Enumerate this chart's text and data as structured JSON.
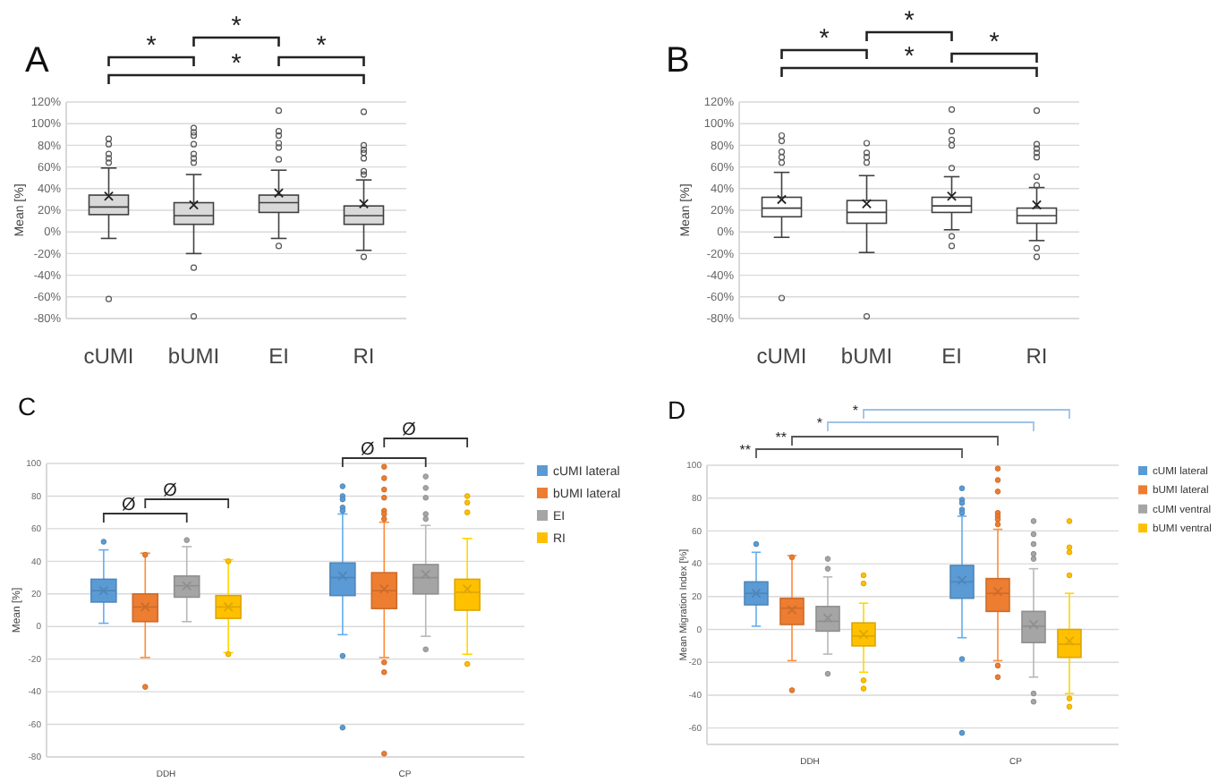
{
  "chart_data": [
    {
      "type": "box",
      "title": "A",
      "ylabel": "Mean [%]",
      "categories": [
        "cUMI",
        "bUMI",
        "EI",
        "RI"
      ],
      "ylim": [
        -80,
        120
      ],
      "yticks": [
        {
          "value": -80,
          "label": "-80%"
        },
        {
          "value": -60,
          "label": "-60%"
        },
        {
          "value": -40,
          "label": "-40%"
        },
        {
          "value": -20,
          "label": "-20%"
        },
        {
          "value": 0,
          "label": "0%"
        },
        {
          "value": 20,
          "label": "20%"
        },
        {
          "value": 40,
          "label": "40%"
        },
        {
          "value": 60,
          "label": "60%"
        },
        {
          "value": 80,
          "label": "80%"
        },
        {
          "value": 100,
          "label": "100%"
        },
        {
          "value": 120,
          "label": "120%"
        }
      ],
      "grid": "y",
      "annotations": [
        "*",
        "*",
        "*",
        "*"
      ],
      "series": [
        {
          "color": "#d9d9d9",
          "boxes": [
            {
              "low": -6,
              "q1": 16,
              "median": 23,
              "q3": 34,
              "high": 59,
              "mean": 33,
              "outliers": [
                86,
                81,
                72,
                68,
                64,
                -62
              ]
            },
            {
              "low": -20,
              "q1": 7,
              "median": 15,
              "q3": 27,
              "high": 53,
              "mean": 25,
              "outliers": [
                96,
                92,
                89,
                81,
                72,
                68,
                64,
                -33,
                -78
              ]
            },
            {
              "low": -6,
              "q1": 18,
              "median": 27,
              "q3": 34,
              "high": 57,
              "mean": 36,
              "outliers": [
                112,
                93,
                89,
                82,
                78,
                67,
                -13
              ]
            },
            {
              "low": -17,
              "q1": 7,
              "median": 15,
              "q3": 24,
              "high": 48,
              "mean": 26,
              "outliers": [
                111,
                80,
                76,
                73,
                68,
                56,
                53,
                -23
              ]
            }
          ]
        }
      ]
    },
    {
      "type": "box",
      "title": "B",
      "ylabel": "Mean [%]",
      "categories": [
        "cUMI",
        "bUMI",
        "EI",
        "RI"
      ],
      "ylim": [
        -80,
        120
      ],
      "yticks": [
        {
          "value": -80,
          "label": "-80%"
        },
        {
          "value": -60,
          "label": "-60%"
        },
        {
          "value": -40,
          "label": "-40%"
        },
        {
          "value": -20,
          "label": "-20%"
        },
        {
          "value": 0,
          "label": "0%"
        },
        {
          "value": 20,
          "label": "20%"
        },
        {
          "value": 40,
          "label": "40%"
        },
        {
          "value": 60,
          "label": "60%"
        },
        {
          "value": 80,
          "label": "80%"
        },
        {
          "value": 100,
          "label": "100%"
        },
        {
          "value": 120,
          "label": "120%"
        }
      ],
      "grid": "y",
      "annotations": [
        "*",
        "*",
        "*",
        "*"
      ],
      "series": [
        {
          "color": "#ffffff",
          "boxes": [
            {
              "low": -5,
              "q1": 14,
              "median": 22,
              "q3": 32,
              "high": 55,
              "mean": 30,
              "outliers": [
                89,
                84,
                74,
                69,
                64,
                -61
              ]
            },
            {
              "low": -19,
              "q1": 8,
              "median": 18,
              "q3": 29,
              "high": 52,
              "mean": 26,
              "outliers": [
                82,
                73,
                69,
                64,
                -78
              ]
            },
            {
              "low": 2,
              "q1": 18,
              "median": 24,
              "q3": 32,
              "high": 51,
              "mean": 33,
              "outliers": [
                113,
                93,
                85,
                80,
                59,
                -4,
                -13
              ]
            },
            {
              "low": -8,
              "q1": 8,
              "median": 15,
              "q3": 22,
              "high": 41,
              "mean": 25,
              "outliers": [
                112,
                81,
                77,
                73,
                69,
                51,
                43,
                -15,
                -23
              ]
            }
          ]
        }
      ]
    },
    {
      "type": "box",
      "title": "C",
      "ylabel": "Mean [%]",
      "categories": [
        "DDH",
        "CP"
      ],
      "ylim": [
        -80,
        100
      ],
      "yticks": [
        -80,
        -60,
        -40,
        -20,
        0,
        20,
        40,
        60,
        80,
        100
      ],
      "grid": "y",
      "legend": "right",
      "annotations": [
        "Ø",
        "Ø",
        "Ø",
        "Ø"
      ],
      "series": [
        {
          "name": "cUMI lateral",
          "color": "#5b9bd5",
          "boxes": [
            {
              "low": 2,
              "q1": 15,
              "median": 22,
              "q3": 29,
              "high": 47,
              "mean": 22,
              "outliers": [
                52
              ]
            },
            {
              "low": -5,
              "q1": 19,
              "median": 30,
              "q3": 39,
              "high": 69,
              "mean": 31,
              "outliers": [
                86,
                80,
                78,
                73,
                71,
                -18,
                -62
              ]
            }
          ]
        },
        {
          "name": "bUMI lateral",
          "color": "#ed7d31",
          "boxes": [
            {
              "low": -19,
              "q1": 3,
              "median": 12,
              "q3": 20,
              "high": 45,
              "mean": 12,
              "outliers": [
                44,
                -37
              ]
            },
            {
              "low": -19,
              "q1": 11,
              "median": 22,
              "q3": 33,
              "high": 64,
              "mean": 23,
              "outliers": [
                98,
                91,
                84,
                79,
                71,
                69,
                66,
                -22,
                -28,
                -78
              ]
            }
          ]
        },
        {
          "name": "EI",
          "color": "#a5a5a5",
          "boxes": [
            {
              "low": 3,
              "q1": 18,
              "median": 25,
              "q3": 31,
              "high": 49,
              "mean": 25,
              "outliers": [
                53
              ]
            },
            {
              "low": -6,
              "q1": 20,
              "median": 30,
              "q3": 38,
              "high": 62,
              "mean": 32,
              "outliers": [
                92,
                85,
                79,
                69,
                66,
                -14
              ]
            }
          ]
        },
        {
          "name": "RI",
          "color": "#ffc000",
          "boxes": [
            {
              "low": -16,
              "q1": 5,
              "median": 12,
              "q3": 19,
              "high": 41,
              "mean": 12,
              "outliers": [
                40,
                -17
              ]
            },
            {
              "low": -17,
              "q1": 10,
              "median": 21,
              "q3": 29,
              "high": 54,
              "mean": 23,
              "outliers": [
                80,
                76,
                70,
                -23
              ]
            }
          ]
        }
      ]
    },
    {
      "type": "box",
      "title": "D",
      "ylabel": "Mean Migration Index [%]",
      "categories": [
        "DDH",
        "CP"
      ],
      "ylim": [
        -70,
        100
      ],
      "yticks": [
        -60,
        -40,
        -20,
        0,
        20,
        40,
        60,
        80,
        100
      ],
      "grid": "y",
      "legend": "right",
      "annotations": [
        "**",
        "**",
        "*",
        "*"
      ],
      "series": [
        {
          "name": "cUMI lateral",
          "color": "#5b9bd5",
          "boxes": [
            {
              "low": 2,
              "q1": 15,
              "median": 22,
              "q3": 29,
              "high": 47,
              "mean": 22,
              "outliers": [
                52
              ]
            },
            {
              "low": -5,
              "q1": 19,
              "median": 29,
              "q3": 39,
              "high": 69,
              "mean": 30,
              "outliers": [
                86,
                79,
                77,
                73,
                71,
                -18,
                -63
              ]
            }
          ]
        },
        {
          "name": "bUMI lateral",
          "color": "#ed7d31",
          "boxes": [
            {
              "low": -19,
              "q1": 3,
              "median": 13,
              "q3": 19,
              "high": 45,
              "mean": 12,
              "outliers": [
                44,
                -37
              ]
            },
            {
              "low": -19,
              "q1": 11,
              "median": 22,
              "q3": 31,
              "high": 61,
              "mean": 23,
              "outliers": [
                98,
                91,
                84,
                71,
                69,
                67,
                64,
                -22,
                -29
              ]
            }
          ]
        },
        {
          "name": "cUMI ventral",
          "color": "#a5a5a5",
          "boxes": [
            {
              "low": -15,
              "q1": -1,
              "median": 5,
              "q3": 14,
              "high": 32,
              "mean": 7,
              "outliers": [
                43,
                37,
                -27
              ]
            },
            {
              "low": -29,
              "q1": -8,
              "median": 2,
              "q3": 11,
              "high": 37,
              "mean": 3,
              "outliers": [
                66,
                58,
                52,
                46,
                43,
                -39,
                -44
              ]
            }
          ]
        },
        {
          "name": "bUMI ventral",
          "color": "#ffc000",
          "boxes": [
            {
              "low": -26,
              "q1": -10,
              "median": -4,
              "q3": 4,
              "high": 16,
              "mean": -3,
              "outliers": [
                33,
                28,
                -31,
                -36
              ]
            },
            {
              "low": -39,
              "q1": -17,
              "median": -9,
              "q3": 0,
              "high": 22,
              "mean": -7,
              "outliers": [
                66,
                50,
                47,
                33,
                -42,
                -47
              ]
            }
          ]
        }
      ]
    }
  ]
}
